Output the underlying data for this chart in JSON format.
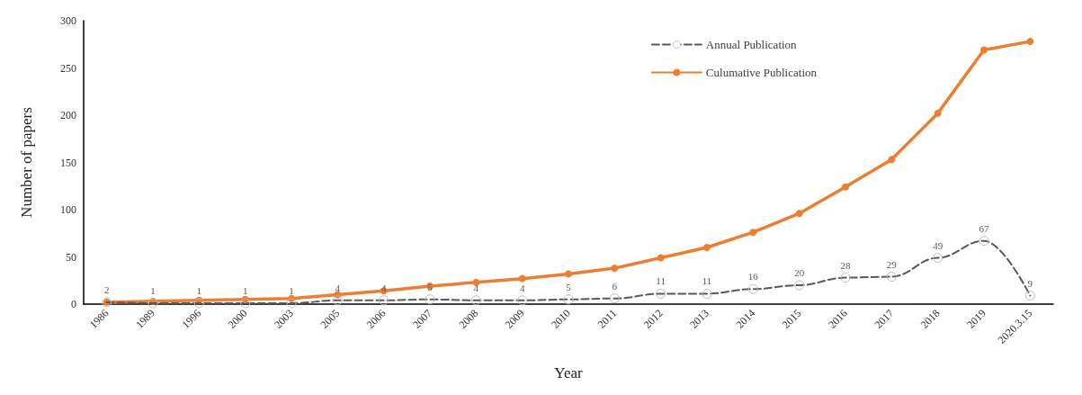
{
  "chart_data": {
    "type": "line",
    "xlabel": "Year",
    "ylabel": "Number of papers",
    "categories": [
      "1986",
      "1989",
      "1996",
      "2000",
      "2003",
      "2005",
      "2006",
      "2007",
      "2008",
      "2009",
      "2010",
      "2011",
      "2012",
      "2013",
      "2014",
      "2015",
      "2016",
      "2017",
      "2018",
      "2019",
      "2020.3.15"
    ],
    "series": [
      {
        "name": "Annual Publication",
        "color": "#595959",
        "line_style": "dashed",
        "values": [
          2,
          1,
          1,
          1,
          1,
          4,
          4,
          5,
          4,
          4,
          5,
          6,
          11,
          11,
          16,
          20,
          28,
          29,
          49,
          67,
          9
        ],
        "value_labels": [
          "2",
          "1",
          "1",
          "1",
          "1",
          "4",
          "4",
          "5",
          "4",
          "4",
          "5",
          "6",
          "11",
          "11",
          "16",
          "20",
          "28",
          "29",
          "49",
          "67",
          "9"
        ]
      },
      {
        "name": "Culumative Publication",
        "color": "#ed7d31",
        "line_style": "solid",
        "values": [
          2,
          3,
          4,
          5,
          6,
          10,
          14,
          19,
          23,
          27,
          32,
          38,
          49,
          60,
          76,
          96,
          124,
          153,
          202,
          269,
          278
        ]
      }
    ],
    "ylim": [
      0,
      300
    ],
    "yticks": [
      0,
      50,
      100,
      150,
      200,
      250,
      300
    ],
    "grid": false,
    "legend": "top right",
    "marker": "circle"
  }
}
